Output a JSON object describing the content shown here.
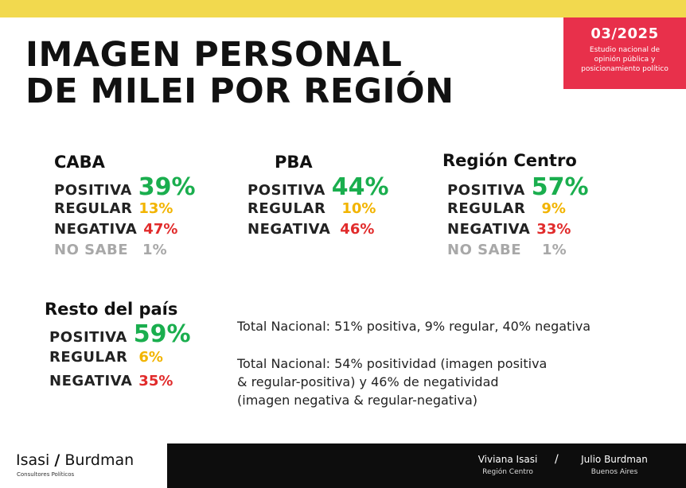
{
  "header": {
    "date": "03/2025",
    "subtitle_lines": [
      "Estudio nacional de",
      "opinión pública y",
      "posicionamiento político"
    ]
  },
  "title_lines": [
    "IMAGEN PERSONAL",
    "DE MILEI POR REGIÓN"
  ],
  "regions": {
    "caba": {
      "name": "CABA",
      "rows": [
        {
          "label": "POSITIVA",
          "value": "39%"
        },
        {
          "label": "REGULAR",
          "value": "13%"
        },
        {
          "label": "NEGATIVA",
          "value": "47%"
        },
        {
          "label": "NO SABE",
          "value": "1%"
        }
      ]
    },
    "pba": {
      "name": "PBA",
      "rows": [
        {
          "label": "POSITIVA",
          "value": "44%"
        },
        {
          "label": "REGULAR",
          "value": "10%"
        },
        {
          "label": "NEGATIVA",
          "value": "46%"
        }
      ]
    },
    "centro": {
      "name": "Región Centro",
      "rows": [
        {
          "label": "POSITIVA",
          "value": "57%"
        },
        {
          "label": "REGULAR",
          "value": "9%"
        },
        {
          "label": "NEGATIVA",
          "value": "33%"
        },
        {
          "label": "NO SABE",
          "value": "1%"
        }
      ]
    },
    "resto": {
      "name": "Resto del país",
      "rows": [
        {
          "label": "POSITIVA",
          "value": "59%"
        },
        {
          "label": "REGULAR",
          "value": "6%"
        },
        {
          "label": "NEGATIVA",
          "value": "35%"
        }
      ]
    }
  },
  "summary": {
    "line1": "Total Nacional: 51% positiva, 9% regular, 40% negativa",
    "line2": [
      "Total Nacional: 54% positividad (imagen positiva",
      "& regular-positiva) y 46% de negatividad",
      "(imagen negativa & regular-negativa)"
    ]
  },
  "footer": {
    "logo_left": "Isasi",
    "logo_slash": "/",
    "logo_right": "Burdman",
    "logo_sub": "Consultores Políticos",
    "author1_name": "Viviana Isasi",
    "author1_place": "Región Centro",
    "separator": "/",
    "author2_name": "Julio Burdman",
    "author2_place": "Buenos Aires"
  },
  "colors": {
    "positive": "#1aae4e",
    "regular": "#f2b400",
    "negative": "#e12b2b",
    "unknown": "#a8a8a8",
    "badge": "#e8304b",
    "stripe": "#f2d94e"
  }
}
